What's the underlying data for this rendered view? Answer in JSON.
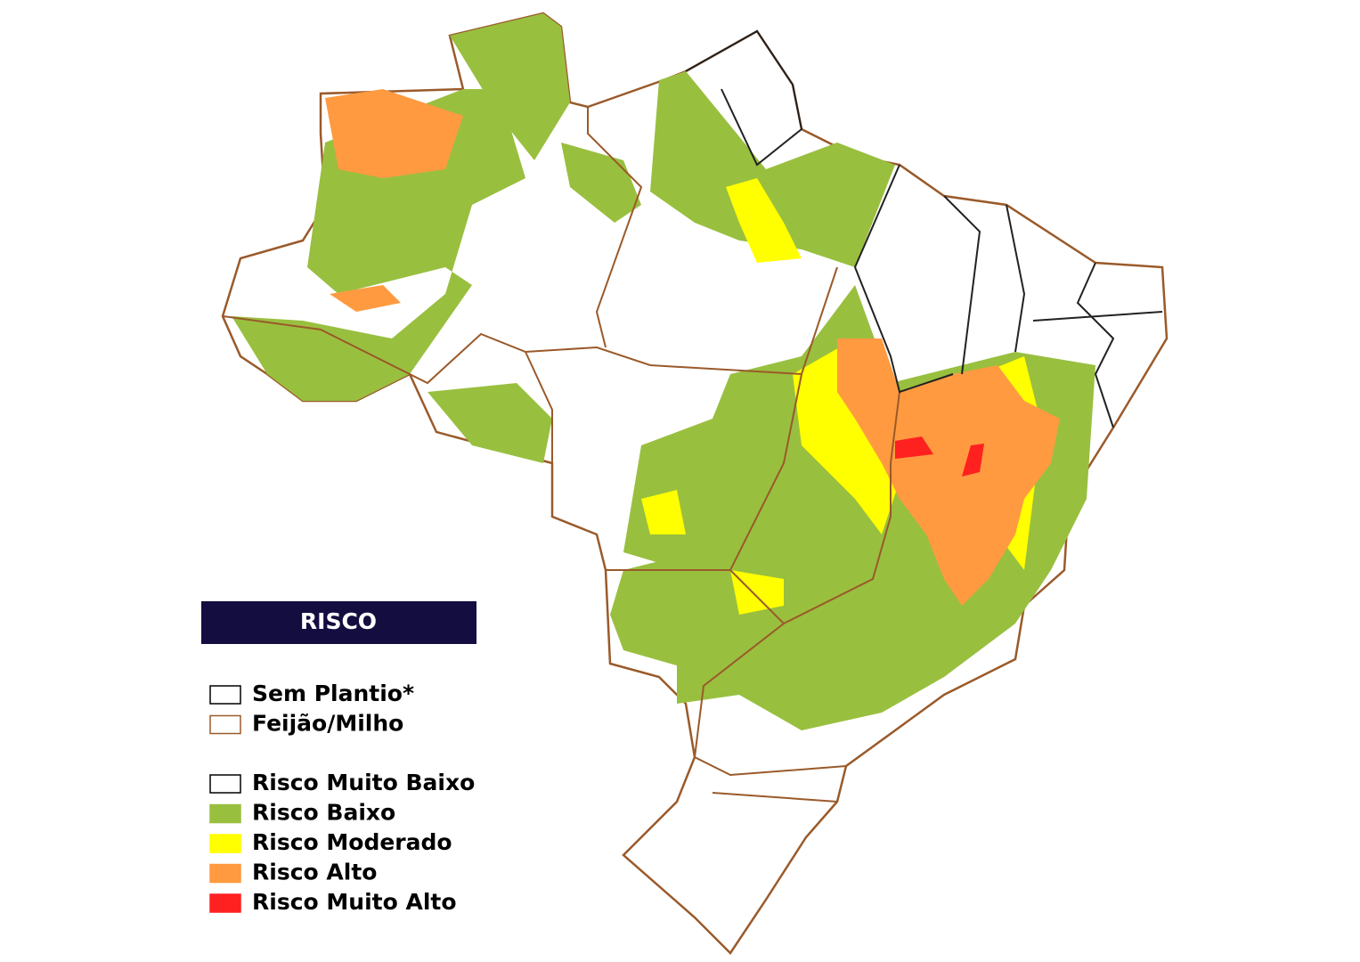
{
  "legend": {
    "title": "RISCO",
    "groups": [
      [
        {
          "label": "Sem Plantio*",
          "fill": "#ffffff",
          "stroke": "#000000"
        },
        {
          "label": "Feijão/Milho",
          "fill": "#ffffff",
          "stroke": "#9a5a2a"
        }
      ],
      [
        {
          "label": "Risco Muito Baixo",
          "fill": "#ffffff",
          "stroke": "#000000"
        },
        {
          "label": "Risco Baixo",
          "fill": "#99bf3f",
          "stroke": "#99bf3f"
        },
        {
          "label": "Risco Moderado",
          "fill": "#ffff00",
          "stroke": "#ffff00"
        },
        {
          "label": "Risco Alto",
          "fill": "#ff9a40",
          "stroke": "#ff9a40"
        },
        {
          "label": "Risco Muito Alto",
          "fill": "#ff2020",
          "stroke": "#ff2020"
        }
      ]
    ]
  }
}
